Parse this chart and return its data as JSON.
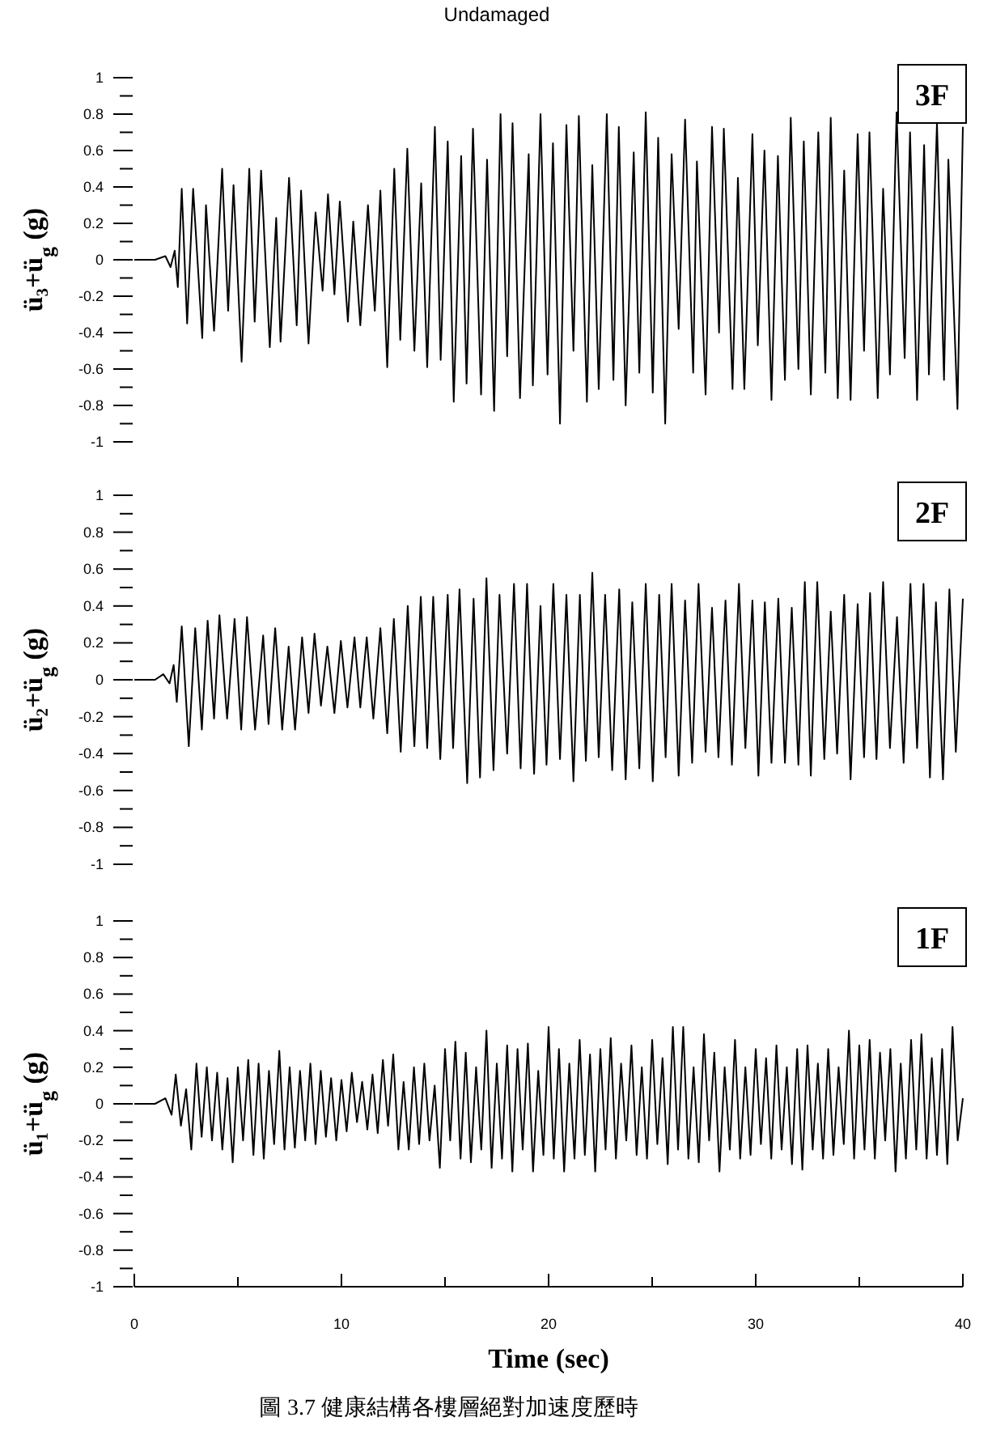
{
  "chart_data": [
    {
      "type": "line",
      "title": "Undamaged",
      "ylabel": "ü₃+ü$_{g}$ (g)",
      "annotations": [
        "3F"
      ],
      "tick_labels": "y",
      "xlim": [
        0,
        40
      ],
      "ylim": [
        -1,
        1
      ],
      "yticks": [
        1,
        {
          "value": 0.9,
          "label": null
        },
        0.8,
        {
          "value": 0.7,
          "label": null
        },
        0.6,
        {
          "value": 0.5,
          "label": null
        },
        0.4,
        {
          "value": 0.3,
          "label": null
        },
        0.2,
        {
          "value": 0.1,
          "label": null
        },
        0,
        {
          "value": -0.1,
          "label": null
        },
        -0.2,
        {
          "value": -0.3,
          "label": null
        },
        -0.4,
        {
          "value": -0.5,
          "label": null
        },
        -0.6,
        {
          "value": -0.7,
          "label": null
        },
        -0.8,
        {
          "value": -0.9,
          "label": null
        },
        -1
      ],
      "x": [
        0,
        1.0,
        1.5,
        1.75,
        1.95,
        2.1,
        2.29,
        2.55,
        2.84,
        3.28,
        3.46,
        3.85,
        4.24,
        4.53,
        4.79,
        5.18,
        5.55,
        5.81,
        6.12,
        6.54,
        6.85,
        7.06,
        7.47,
        7.84,
        8.05,
        8.41,
        8.75,
        9.09,
        9.35,
        9.66,
        9.92,
        10.31,
        10.57,
        10.91,
        11.28,
        11.61,
        11.88,
        12.21,
        12.55,
        12.84,
        13.18,
        13.52,
        13.85,
        14.14,
        14.51,
        14.79,
        15.13,
        15.42,
        15.78,
        16.04,
        16.35,
        16.74,
        17.03,
        17.37,
        17.68,
        18.0,
        18.26,
        18.62,
        19.04,
        19.24,
        19.61,
        19.95,
        20.21,
        20.55,
        20.86,
        21.2,
        21.46,
        21.85,
        22.11,
        22.42,
        22.81,
        23.13,
        23.39,
        23.72,
        24.11,
        24.38,
        24.69,
        25.03,
        25.29,
        25.63,
        25.94,
        26.28,
        26.59,
        26.98,
        27.16,
        27.58,
        27.89,
        28.23,
        28.46,
        28.88,
        29.14,
        29.45,
        29.84,
        30.1,
        30.42,
        30.76,
        31.07,
        31.41,
        31.69,
        32.06,
        32.32,
        32.66,
        33.02,
        33.36,
        33.62,
        33.96,
        34.27,
        34.58,
        34.92,
        35.23,
        35.49,
        35.89,
        36.15,
        36.48,
        36.8,
        37.19,
        37.45,
        37.79,
        38.13,
        38.36,
        38.75,
        39.09,
        39.3,
        39.74,
        40.0
      ],
      "series": [
        {
          "color": "#000000",
          "values": [
            0,
            0.0,
            0.02,
            -0.04,
            0.05,
            -0.15,
            0.39,
            -0.35,
            0.39,
            -0.43,
            0.3,
            -0.39,
            0.5,
            -0.28,
            0.41,
            -0.56,
            0.5,
            -0.34,
            0.49,
            -0.48,
            0.23,
            -0.45,
            0.45,
            -0.36,
            0.38,
            -0.46,
            0.26,
            -0.17,
            0.36,
            -0.19,
            0.32,
            -0.34,
            0.21,
            -0.36,
            0.3,
            -0.28,
            0.38,
            -0.59,
            0.5,
            -0.44,
            0.61,
            -0.5,
            0.42,
            -0.59,
            0.73,
            -0.55,
            0.65,
            -0.78,
            0.57,
            -0.68,
            0.72,
            -0.74,
            0.55,
            -0.83,
            0.8,
            -0.53,
            0.75,
            -0.76,
            0.58,
            -0.69,
            0.8,
            -0.63,
            0.64,
            -0.9,
            0.74,
            -0.5,
            0.79,
            -0.78,
            0.52,
            -0.71,
            0.8,
            -0.66,
            0.73,
            -0.8,
            0.59,
            -0.62,
            0.81,
            -0.73,
            0.67,
            -0.9,
            0.58,
            -0.38,
            0.77,
            -0.62,
            0.54,
            -0.74,
            0.73,
            -0.4,
            0.72,
            -0.71,
            0.45,
            -0.71,
            0.69,
            -0.47,
            0.6,
            -0.77,
            0.57,
            -0.66,
            0.78,
            -0.6,
            0.65,
            -0.74,
            0.7,
            -0.62,
            0.78,
            -0.76,
            0.49,
            -0.77,
            0.69,
            -0.5,
            0.7,
            -0.76,
            0.39,
            -0.63,
            0.81,
            -0.54,
            0.7,
            -0.77,
            0.63,
            -0.63,
            0.75,
            -0.66,
            0.55,
            -0.82,
            0.73
          ]
        }
      ]
    },
    {
      "type": "line",
      "ylabel": "ü₂+ü$_{g}$ (g)",
      "annotations": [
        "2F"
      ],
      "tick_labels": "y",
      "xlim": [
        0,
        40
      ],
      "ylim": [
        -1,
        1
      ],
      "yticks": [
        1,
        {
          "value": 0.9,
          "label": null
        },
        0.8,
        {
          "value": 0.7,
          "label": null
        },
        0.6,
        {
          "value": 0.5,
          "label": null
        },
        0.4,
        {
          "value": 0.3,
          "label": null
        },
        0.2,
        {
          "value": 0.1,
          "label": null
        },
        0,
        {
          "value": -0.1,
          "label": null
        },
        -0.2,
        {
          "value": -0.3,
          "label": null
        },
        -0.4,
        {
          "value": -0.5,
          "label": null
        },
        -0.6,
        {
          "value": -0.7,
          "label": null
        },
        -0.8,
        {
          "value": -0.9,
          "label": null
        },
        -1
      ],
      "x": [
        0,
        1.0,
        1.4,
        1.7,
        1.9,
        2.05,
        2.29,
        2.63,
        2.94,
        3.26,
        3.54,
        3.85,
        4.11,
        4.48,
        4.84,
        5.16,
        5.44,
        5.83,
        6.22,
        6.48,
        6.8,
        7.14,
        7.45,
        7.76,
        8.1,
        8.41,
        8.7,
        9.01,
        9.32,
        9.66,
        9.97,
        10.29,
        10.63,
        10.91,
        11.22,
        11.54,
        11.88,
        12.21,
        12.53,
        12.86,
        13.2,
        13.52,
        13.83,
        14.14,
        14.43,
        14.77,
        15.13,
        15.39,
        15.7,
        16.07,
        16.38,
        16.69,
        17.0,
        17.34,
        17.63,
        18.0,
        18.33,
        18.65,
        18.96,
        19.3,
        19.61,
        19.9,
        20.23,
        20.55,
        20.86,
        21.2,
        21.51,
        21.8,
        22.11,
        22.42,
        22.73,
        23.07,
        23.41,
        23.72,
        24.04,
        24.38,
        24.69,
        25.03,
        25.34,
        25.65,
        25.94,
        26.28,
        26.59,
        26.93,
        27.24,
        27.58,
        27.89,
        28.2,
        28.54,
        28.85,
        29.19,
        29.5,
        29.84,
        30.13,
        30.44,
        30.76,
        31.09,
        31.41,
        31.74,
        32.06,
        32.37,
        32.66,
        32.97,
        33.31,
        33.62,
        33.93,
        34.27,
        34.58,
        34.92,
        35.23,
        35.52,
        35.83,
        36.15,
        36.48,
        36.82,
        37.14,
        37.47,
        37.79,
        38.1,
        38.41,
        38.7,
        39.04,
        39.35,
        39.66,
        40.0
      ],
      "series": [
        {
          "color": "#000000",
          "values": [
            0,
            0.0,
            0.03,
            -0.02,
            0.08,
            -0.12,
            0.29,
            -0.36,
            0.28,
            -0.27,
            0.32,
            -0.21,
            0.35,
            -0.21,
            0.33,
            -0.27,
            0.34,
            -0.27,
            0.24,
            -0.24,
            0.28,
            -0.27,
            0.18,
            -0.27,
            0.23,
            -0.18,
            0.25,
            -0.14,
            0.18,
            -0.18,
            0.21,
            -0.15,
            0.23,
            -0.15,
            0.23,
            -0.21,
            0.28,
            -0.29,
            0.33,
            -0.39,
            0.4,
            -0.36,
            0.45,
            -0.37,
            0.45,
            -0.43,
            0.46,
            -0.37,
            0.49,
            -0.56,
            0.44,
            -0.53,
            0.55,
            -0.49,
            0.46,
            -0.4,
            0.52,
            -0.48,
            0.52,
            -0.51,
            0.4,
            -0.46,
            0.52,
            -0.43,
            0.46,
            -0.55,
            0.46,
            -0.44,
            0.58,
            -0.42,
            0.46,
            -0.49,
            0.49,
            -0.54,
            0.42,
            -0.48,
            0.52,
            -0.55,
            0.46,
            -0.42,
            0.52,
            -0.52,
            0.43,
            -0.45,
            0.52,
            -0.39,
            0.39,
            -0.42,
            0.43,
            -0.46,
            0.52,
            -0.37,
            0.43,
            -0.52,
            0.42,
            -0.45,
            0.44,
            -0.45,
            0.39,
            -0.46,
            0.53,
            -0.52,
            0.53,
            -0.43,
            0.37,
            -0.4,
            0.46,
            -0.54,
            0.41,
            -0.42,
            0.47,
            -0.43,
            0.53,
            -0.37,
            0.34,
            -0.45,
            0.52,
            -0.37,
            0.52,
            -0.53,
            0.42,
            -0.54,
            0.49,
            -0.39,
            0.44
          ]
        }
      ]
    },
    {
      "type": "line",
      "ylabel": "ü₁+ü$_{g}$ (g)",
      "xlabel": "Time (sec)",
      "annotations": [
        "1F",
        "圖 3.7 健康結構各樓層絕對加速度歷時"
      ],
      "xlim": [
        0,
        40
      ],
      "ylim": [
        -1,
        1
      ],
      "xticks": [
        0,
        {
          "value": 5,
          "label": null
        },
        10,
        {
          "value": 15,
          "label": null
        },
        20,
        {
          "value": 25,
          "label": null
        },
        30,
        {
          "value": 35,
          "label": null
        },
        40
      ],
      "yticks": [
        1,
        {
          "value": 0.9,
          "label": null
        },
        0.8,
        {
          "value": 0.7,
          "label": null
        },
        0.6,
        {
          "value": 0.5,
          "label": null
        },
        0.4,
        {
          "value": 0.3,
          "label": null
        },
        0.2,
        {
          "value": 0.1,
          "label": null
        },
        0,
        {
          "value": -0.1,
          "label": null
        },
        -0.2,
        {
          "value": -0.3,
          "label": null
        },
        -0.4,
        {
          "value": -0.5,
          "label": null
        },
        -0.6,
        {
          "value": -0.7,
          "label": null
        },
        -0.8,
        {
          "value": -0.9,
          "label": null
        },
        -1
      ],
      "x": [
        0,
        1.0,
        1.5,
        1.8,
        2.0,
        2.25,
        2.5,
        2.75,
        3.0,
        3.25,
        3.5,
        3.75,
        4.0,
        4.25,
        4.5,
        4.75,
        5.0,
        5.25,
        5.5,
        5.75,
        6.0,
        6.25,
        6.5,
        6.75,
        7.0,
        7.25,
        7.5,
        7.75,
        8.0,
        8.25,
        8.5,
        8.75,
        9.0,
        9.25,
        9.5,
        9.75,
        10.0,
        10.25,
        10.5,
        10.75,
        11.0,
        11.25,
        11.5,
        11.75,
        12.0,
        12.25,
        12.5,
        12.75,
        13.0,
        13.25,
        13.5,
        13.75,
        14.0,
        14.25,
        14.5,
        14.75,
        15.0,
        15.25,
        15.5,
        15.75,
        16.0,
        16.25,
        16.5,
        16.75,
        17.0,
        17.25,
        17.5,
        17.75,
        18.0,
        18.25,
        18.5,
        18.75,
        19.0,
        19.25,
        19.5,
        19.75,
        20.0,
        20.25,
        20.5,
        20.75,
        21.0,
        21.25,
        21.5,
        21.75,
        22.0,
        22.25,
        22.5,
        22.75,
        23.0,
        23.25,
        23.5,
        23.75,
        24.0,
        24.25,
        24.5,
        24.75,
        25.0,
        25.25,
        25.5,
        25.75,
        26.0,
        26.25,
        26.5,
        26.75,
        27.0,
        27.25,
        27.5,
        27.75,
        28.0,
        28.25,
        28.5,
        28.75,
        29.0,
        29.25,
        29.5,
        29.75,
        30.0,
        30.25,
        30.5,
        30.75,
        31.0,
        31.25,
        31.5,
        31.75,
        32.0,
        32.25,
        32.5,
        32.75,
        33.0,
        33.25,
        33.5,
        33.75,
        34.0,
        34.25,
        34.5,
        34.75,
        35.0,
        35.25,
        35.5,
        35.75,
        36.0,
        36.25,
        36.5,
        36.75,
        37.0,
        37.25,
        37.5,
        37.75,
        38.0,
        38.25,
        38.5,
        38.75,
        39.0,
        39.25,
        39.5,
        39.75,
        40.0
      ],
      "series": [
        {
          "color": "#000000",
          "values": [
            0,
            0.0,
            0.03,
            -0.06,
            0.16,
            -0.12,
            0.08,
            -0.25,
            0.22,
            -0.18,
            0.2,
            -0.2,
            0.17,
            -0.25,
            0.14,
            -0.32,
            0.2,
            -0.2,
            0.24,
            -0.28,
            0.22,
            -0.3,
            0.18,
            -0.22,
            0.29,
            -0.25,
            0.2,
            -0.24,
            0.18,
            -0.2,
            0.22,
            -0.22,
            0.18,
            -0.18,
            0.14,
            -0.2,
            0.13,
            -0.15,
            0.17,
            -0.1,
            0.12,
            -0.14,
            0.16,
            -0.16,
            0.24,
            -0.12,
            0.27,
            -0.25,
            0.12,
            -0.25,
            0.2,
            -0.22,
            0.22,
            -0.2,
            0.1,
            -0.35,
            0.3,
            -0.2,
            0.34,
            -0.3,
            0.28,
            -0.32,
            0.2,
            -0.25,
            0.4,
            -0.35,
            0.22,
            -0.3,
            0.32,
            -0.37,
            0.3,
            -0.25,
            0.33,
            -0.37,
            0.18,
            -0.28,
            0.42,
            -0.3,
            0.3,
            -0.37,
            0.22,
            -0.3,
            0.35,
            -0.28,
            0.27,
            -0.37,
            0.3,
            -0.25,
            0.36,
            -0.3,
            0.22,
            -0.2,
            0.32,
            -0.28,
            0.2,
            -0.3,
            0.35,
            -0.22,
            0.25,
            -0.33,
            0.42,
            -0.25,
            0.42,
            -0.3,
            0.2,
            -0.32,
            0.38,
            -0.2,
            0.28,
            -0.37,
            0.2,
            -0.25,
            0.35,
            -0.3,
            0.2,
            -0.28,
            0.3,
            -0.22,
            0.25,
            -0.3,
            0.32,
            -0.25,
            0.2,
            -0.33,
            0.3,
            -0.36,
            0.32,
            -0.25,
            0.22,
            -0.3,
            0.3,
            -0.28,
            0.2,
            -0.22,
            0.4,
            -0.3,
            0.32,
            -0.25,
            0.35,
            -0.3,
            0.28,
            -0.2,
            0.3,
            -0.37,
            0.22,
            -0.3,
            0.35,
            -0.25,
            0.38,
            -0.3,
            0.25,
            -0.28,
            0.3,
            -0.33,
            0.42,
            -0.2,
            0.03
          ]
        }
      ]
    }
  ]
}
